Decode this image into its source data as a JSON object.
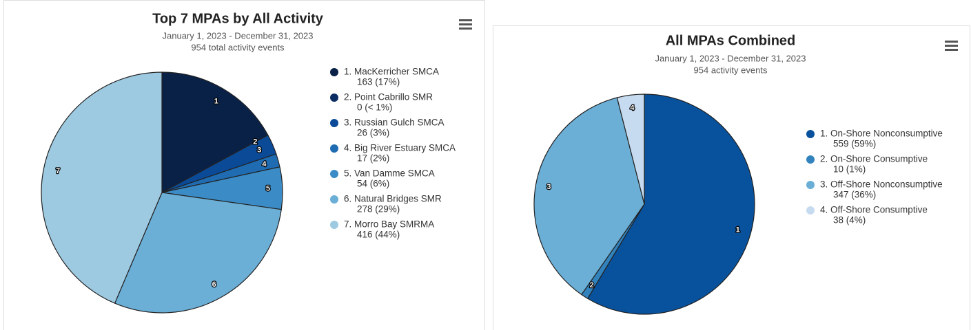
{
  "chart_data": [
    {
      "type": "pie",
      "title": "Top 7 MPAs by All Activity",
      "subtitle": [
        "January 1, 2023 - December 31, 2023",
        "954 total activity events"
      ],
      "categories": [
        "1. MacKerricher SMCA",
        "2. Point Cabrillo SMR",
        "3. Russian Gulch SMCA",
        "4. Big River Estuary SMCA",
        "5. Van Damme SMCA",
        "6. Natural Bridges SMR",
        "7. Morro Bay SMRMA"
      ],
      "values": [
        163,
        0,
        26,
        17,
        54,
        278,
        416
      ],
      "value_labels": [
        "163 (17%)",
        "0 (< 1%)",
        "26 (3%)",
        "17 (2%)",
        "54 (6%)",
        "278 (29%)",
        "416 (44%)"
      ],
      "slice_labels": [
        "1",
        "2",
        "3",
        "4",
        "5",
        "6",
        "7"
      ],
      "colors": [
        "#0a2147",
        "#0b2d63",
        "#0a4a97",
        "#1f6cb3",
        "#3b8cc6",
        "#6baed6",
        "#9ecae1"
      ],
      "legend": "right"
    },
    {
      "type": "pie",
      "title": "All MPAs Combined",
      "subtitle": [
        "January 1, 2023 - December 31, 2023",
        "954 activity events"
      ],
      "categories": [
        "1. On-Shore Nonconsumptive",
        "2. On-Shore Consumptive",
        "3. Off-Shore Nonconsumptive",
        "4. Off-Shore Consumptive"
      ],
      "values": [
        559,
        10,
        347,
        38
      ],
      "value_labels": [
        "559 (59%)",
        "10 (1%)",
        "347 (36%)",
        "38 (4%)"
      ],
      "slice_labels": [
        "1",
        "2",
        "3",
        "4"
      ],
      "colors": [
        "#08519c",
        "#3182bd",
        "#6baed6",
        "#c6dbef"
      ],
      "legend": "right"
    }
  ]
}
